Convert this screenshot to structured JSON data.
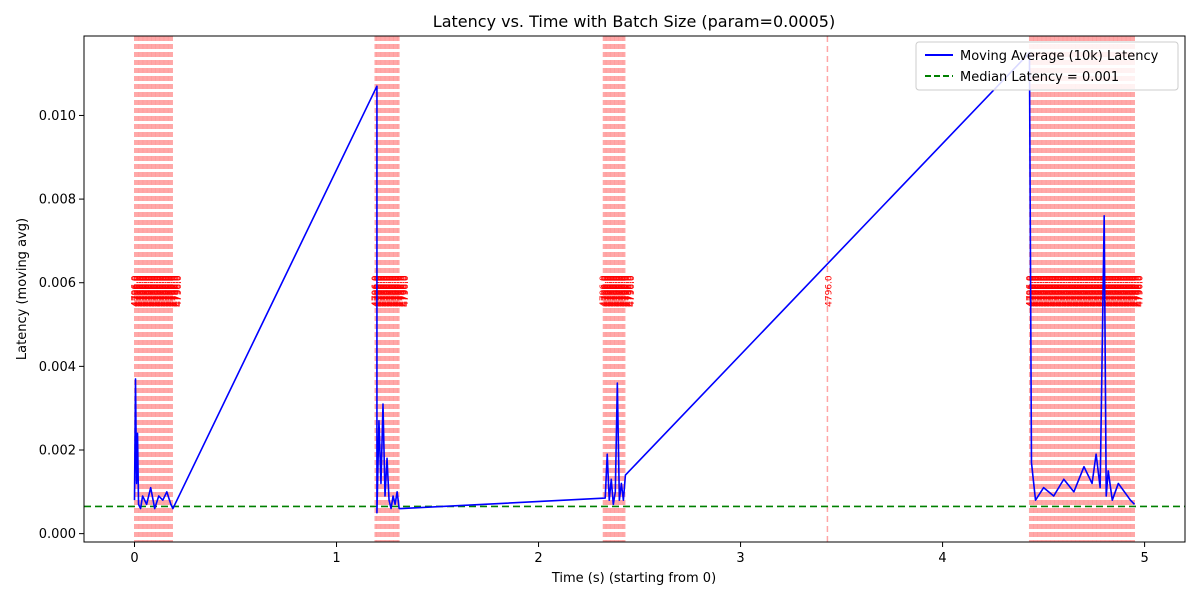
{
  "chart_data": {
    "type": "line",
    "title": "Latency vs. Time with Batch Size (param=0.0005)",
    "xlabel": "Time (s) (starting from 0)",
    "ylabel": "Latency (moving avg)",
    "xlim": [
      -0.25,
      5.2
    ],
    "ylim": [
      -0.0002,
      0.0119
    ],
    "x_ticks": [
      0,
      1,
      2,
      3,
      4,
      5
    ],
    "x_tick_labels": [
      "0",
      "1",
      "2",
      "3",
      "4",
      "5"
    ],
    "y_ticks": [
      0,
      0.002,
      0.004,
      0.006,
      0.008,
      0.01
    ],
    "y_tick_labels": [
      "0.000",
      "0.002",
      "0.004",
      "0.006",
      "0.008",
      "0.010"
    ],
    "grid": false,
    "legend_position": "top-right",
    "legend": [
      {
        "label": "Moving Average (10k) Latency",
        "style": "solid",
        "color": "#0000ff"
      },
      {
        "label": "Median Latency = 0.001",
        "style": "dashed",
        "color": "#008000"
      }
    ],
    "median_latency": 0.00065,
    "batch_regions": [
      {
        "x_start": 0.0,
        "x_end": 0.19
      },
      {
        "x_start": 1.19,
        "x_end": 1.31
      },
      {
        "x_start": 2.32,
        "x_end": 2.43
      },
      {
        "x_start": 4.43,
        "x_end": 4.95
      }
    ],
    "annotated_batch": {
      "x": 3.43,
      "label": "4796.0"
    },
    "segment_label_value": 0.0058,
    "series": [
      {
        "name": "Moving Average (10k) Latency",
        "color": "#0000ff",
        "x": [
          0.0,
          0.005,
          0.01,
          0.015,
          0.02,
          0.03,
          0.04,
          0.06,
          0.08,
          0.1,
          0.12,
          0.14,
          0.16,
          0.18,
          0.19,
          1.2,
          1.2,
          1.21,
          1.22,
          1.23,
          1.24,
          1.25,
          1.26,
          1.27,
          1.28,
          1.29,
          1.3,
          1.31,
          1.32,
          2.33,
          2.34,
          2.35,
          2.36,
          2.37,
          2.38,
          2.39,
          2.4,
          2.41,
          2.42,
          2.43,
          4.43,
          4.44,
          4.46,
          4.5,
          4.55,
          4.6,
          4.65,
          4.7,
          4.74,
          4.76,
          4.78,
          4.8,
          4.81,
          4.82,
          4.84,
          4.87,
          4.9,
          4.93,
          4.95
        ],
        "y": [
          0.0008,
          0.0037,
          0.0012,
          0.0024,
          0.0007,
          0.0006,
          0.0009,
          0.0007,
          0.0011,
          0.0006,
          0.0009,
          0.0008,
          0.001,
          0.0007,
          0.0006,
          0.0107,
          0.0005,
          0.0027,
          0.0012,
          0.0031,
          0.0009,
          0.0018,
          0.0008,
          0.0006,
          0.0009,
          0.0007,
          0.001,
          0.0006,
          0.0006,
          0.00085,
          0.0019,
          0.0008,
          0.0013,
          0.0007,
          0.001,
          0.0036,
          0.0008,
          0.0012,
          0.0008,
          0.0014,
          0.0115,
          0.0017,
          0.0008,
          0.0011,
          0.0009,
          0.0013,
          0.001,
          0.0016,
          0.0012,
          0.0019,
          0.0011,
          0.0076,
          0.0009,
          0.0015,
          0.0008,
          0.0012,
          0.001,
          0.0008,
          0.0007
        ]
      }
    ]
  }
}
